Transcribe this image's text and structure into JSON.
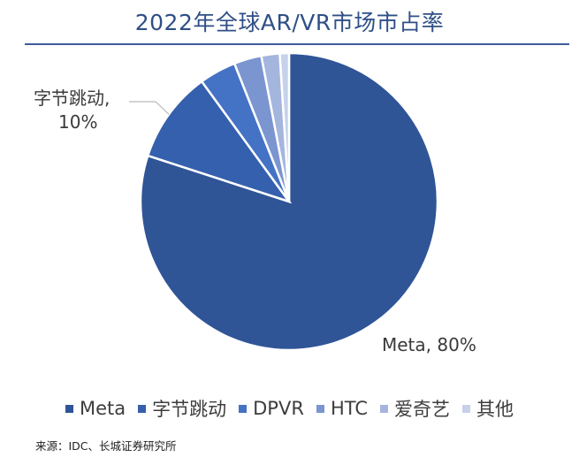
{
  "title": "2022年全球AR/VR市场市占率",
  "source": "来源：IDC、长城证券研究所",
  "chart_data": {
    "type": "pie",
    "title": "2022年全球AR/VR市场市占率",
    "slices": [
      {
        "label": "Meta",
        "value": 80,
        "color": "#2f5597"
      },
      {
        "label": "字节跳动",
        "value": 10,
        "color": "#3560ad"
      },
      {
        "label": "DPVR",
        "value": 4,
        "color": "#4472c4"
      },
      {
        "label": "HTC",
        "value": 3,
        "color": "#7a95d0"
      },
      {
        "label": "爱奇艺",
        "value": 2,
        "color": "#a4b6de"
      },
      {
        "label": "其他",
        "value": 1,
        "color": "#c6d2ea"
      }
    ],
    "data_labels": [
      {
        "name": "Meta",
        "line1": "Meta, 80%"
      },
      {
        "name": "字节跳动",
        "line1": "字节跳动,",
        "line2": "10%"
      }
    ],
    "legend_position": "bottom"
  }
}
